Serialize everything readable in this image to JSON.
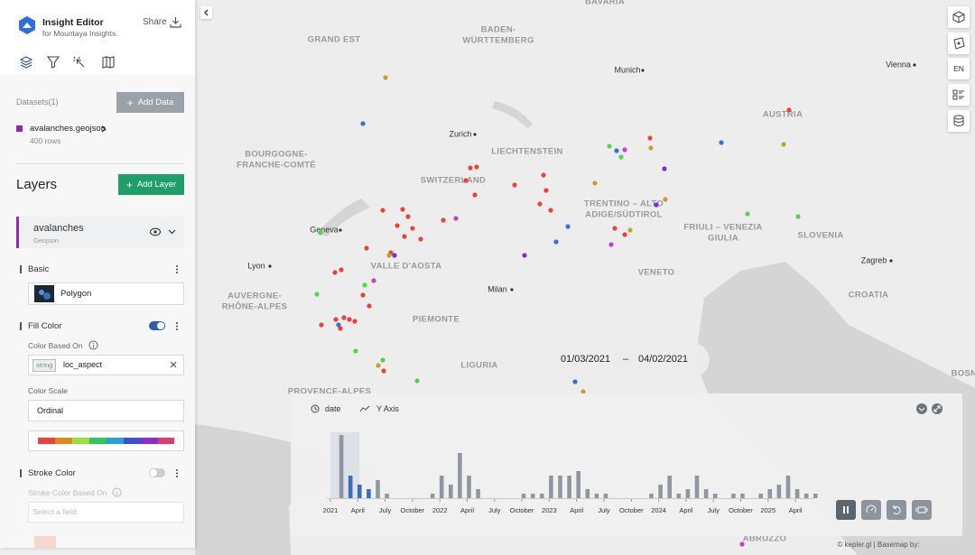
{
  "sidebar": {
    "app_title": "Insight Editor",
    "app_subtitle": "for Mountaya Insights.",
    "share": "Share",
    "datasets_label": "Datasets(1)",
    "add_data": "Add Data",
    "dataset_name": "avalanches.geojson",
    "dataset_rows": "400 rows",
    "layers_title": "Layers",
    "add_layer": "Add Layer",
    "layer_name": "avalanches",
    "layer_type": "Geojson",
    "basic": "Basic",
    "polygon": "Polygon",
    "fill_color": "Fill Color",
    "color_based_on": "Color Based On",
    "field_type": "string",
    "field_name": "loc_aspect",
    "color_scale": "Color Scale",
    "scale_value": "Ordinal",
    "stroke_color": "Stroke Color",
    "stroke_based_on": "Stroke Color Based On",
    "select_field": "Select a field"
  },
  "toolbar": {
    "language": "EN"
  },
  "map": {
    "labels": [
      [
        "BAVARIA"
      ],
      [
        "GRAND EST"
      ],
      [
        "BADEN-",
        "WÜRTTEMBERG"
      ],
      [
        "Munich"
      ],
      [
        "Vienna"
      ],
      [
        "AUSTRIA"
      ],
      [
        "Zurich"
      ],
      [
        "LIECHTENSTEIN"
      ],
      [
        "BOURGOGNE-",
        "FRANCHE-COMTÉ"
      ],
      [
        "SWITZERLAND"
      ],
      [
        "TRENTINO – ALTO",
        "ADIGE/SÜDTIROL"
      ],
      [
        "FRIULI – VENEZIA",
        "GIULIA"
      ],
      [
        "SLOVENIA"
      ],
      [
        "Geneva"
      ],
      [
        "Lyon"
      ],
      [
        "VALLE D'AOSTA"
      ],
      [
        "VENETO"
      ],
      [
        "Zagreb"
      ],
      [
        "CROATIA"
      ],
      [
        "Milan"
      ],
      [
        "AUVERGNE-",
        "RHÔNE-ALPES"
      ],
      [
        "PIEMONTE"
      ],
      [
        "LIGURIA"
      ],
      [
        "PROVENCE-ALPES"
      ],
      [
        "BOSN"
      ],
      [
        "ABRUZZO"
      ]
    ],
    "credit": "© kepler.gl | Basemap by:"
  },
  "time_range": {
    "start": "01/03/2021",
    "separator": "–",
    "end": "04/02/2021"
  },
  "timeline": {
    "tabs": [
      "date",
      "Y Axis"
    ],
    "counts": [
      0,
      14,
      5,
      3,
      2,
      4,
      1,
      0,
      0,
      0,
      0,
      1,
      5,
      3,
      10,
      5,
      2,
      0,
      0,
      0,
      0,
      1,
      1,
      1,
      5,
      5,
      5,
      6,
      2,
      1,
      1,
      0,
      0,
      0,
      0,
      1,
      3,
      5,
      1,
      2,
      5,
      2,
      1,
      0,
      1,
      1,
      0,
      1,
      2,
      3,
      5,
      2,
      1,
      1
    ],
    "axis_labels": [
      "2021",
      "April",
      "July",
      "October",
      "2022",
      "April",
      "July",
      "October",
      "2023",
      "April",
      "July",
      "October",
      "2024",
      "April",
      "July",
      "October",
      "2025",
      "April"
    ]
  }
}
